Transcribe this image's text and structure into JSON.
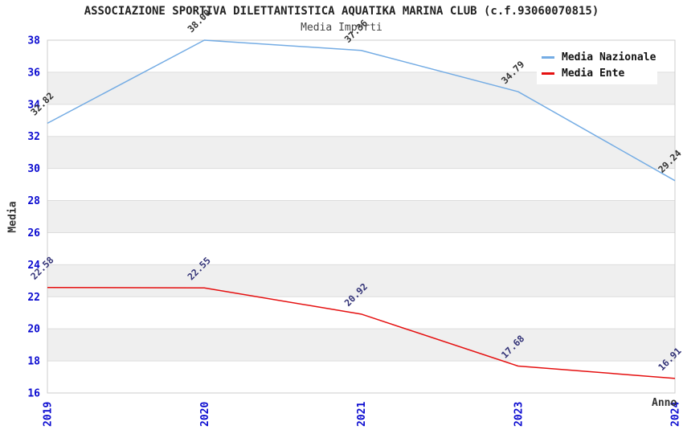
{
  "header": {
    "title": "ASSOCIAZIONE SPORTIVA DILETTANTISTICA AQUATIKA MARINA CLUB (c.f.93060070815)",
    "subtitle": "Media Importi"
  },
  "chart_data": {
    "type": "line",
    "title": "ASSOCIAZIONE SPORTIVA DILETTANTISTICA AQUATIKA MARINA CLUB (c.f.93060070815)",
    "subtitle": "Media Importi",
    "xlabel": "Anno",
    "ylabel": "Media",
    "categories": [
      "2019",
      "2020",
      "2021",
      "2023",
      "2024"
    ],
    "series": [
      {
        "name": "Media Nazionale",
        "color": "#74ACE4",
        "label_color": "#333333",
        "values": [
          32.82,
          38.0,
          37.36,
          34.79,
          29.24
        ]
      },
      {
        "name": "Media Ente",
        "color": "#E51010",
        "label_color": "#333377",
        "values": [
          22.58,
          22.55,
          20.92,
          17.68,
          16.91
        ]
      }
    ],
    "ylim": [
      16,
      38
    ],
    "ytick_step": 2,
    "grid": "alternating-horizontal-bands",
    "legend_position": "top-right",
    "point_labels_decimals": 2,
    "colors": {
      "band_gray": "#EFEFEF",
      "grid_line": "#DDDDDD",
      "plot_border": "#CCCCCC",
      "tick_label": "#0b0bd0",
      "title_text": "#222222",
      "subtitle_text": "#444444",
      "axis_title_text": "#333333"
    }
  }
}
